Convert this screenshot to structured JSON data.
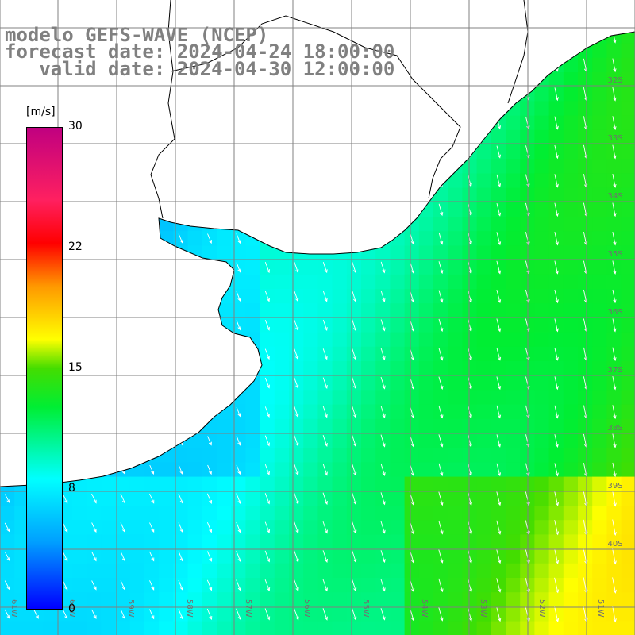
{
  "title": {
    "line1": "modelo GEFS-WAVE (NCEP)",
    "line2": "forecast date: 2024-04-24 18:00:00",
    "line3": "   valid date: 2024-04-30 12:00:00"
  },
  "colorbar": {
    "unit": "[m/s]",
    "ticks": [
      "30",
      "22",
      "15",
      "8",
      "0"
    ],
    "min": 0,
    "max": 30
  },
  "map": {
    "lat_labels": [
      "32S",
      "33S",
      "34S",
      "35S",
      "36S",
      "37S",
      "38S",
      "39S",
      "40S"
    ],
    "lon_labels": [
      "61W",
      "60W",
      "59W",
      "58W",
      "57W",
      "56W",
      "55W",
      "54W",
      "53W",
      "52W",
      "51W"
    ],
    "colors": {
      "land": "#ffffff",
      "grid": "#808080",
      "coast": "#000000",
      "arrows": "#ffffff"
    }
  }
}
